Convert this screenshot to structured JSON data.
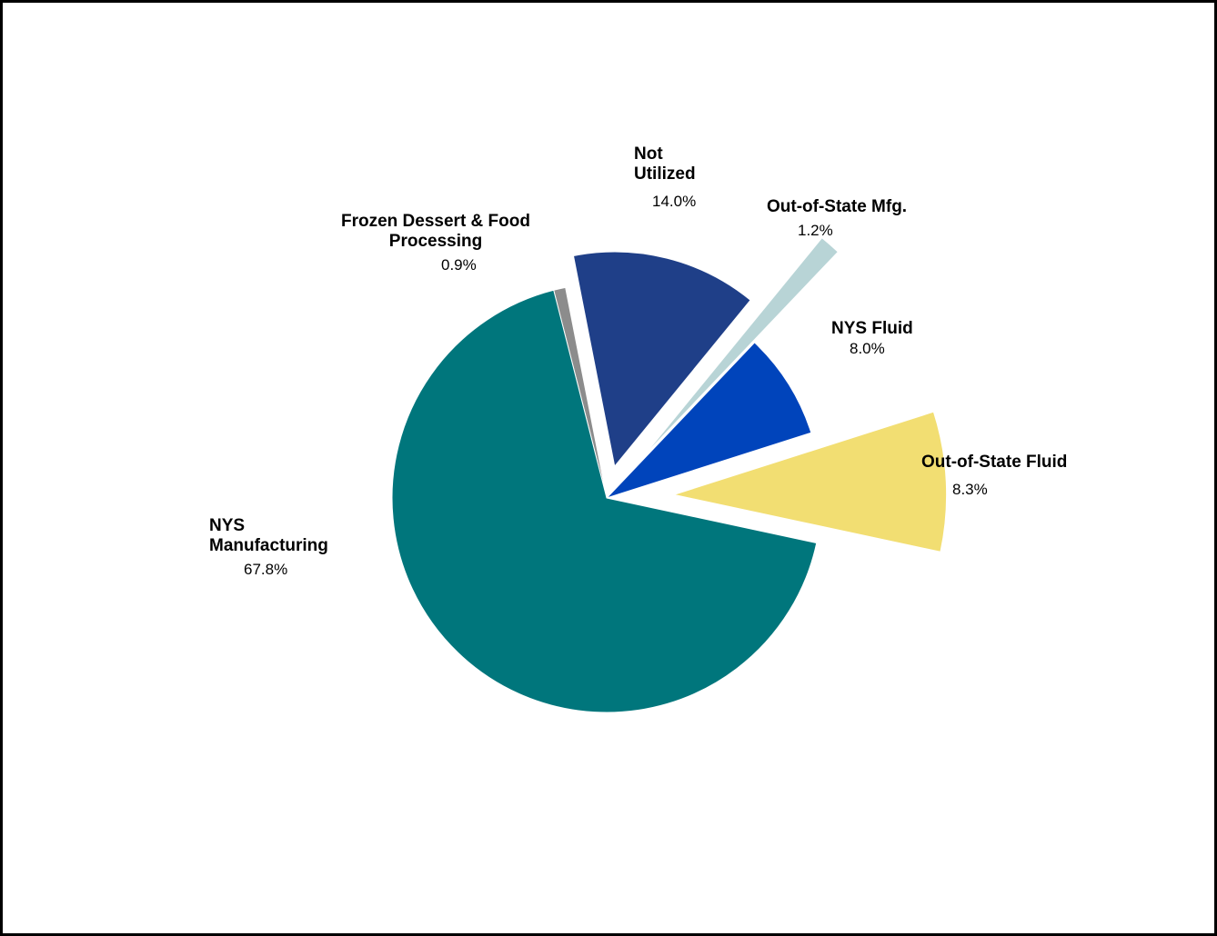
{
  "chart_data": {
    "type": "pie",
    "title": "",
    "slices": [
      {
        "label": "NYS Manufacturing",
        "value": 67.8,
        "value_label": "67.8%",
        "color": "#00767c",
        "exploded": false
      },
      {
        "label": "Frozen Dessert & Food Processing",
        "value": 0.9,
        "value_label": "0.9%",
        "color": "#8c8c8c",
        "exploded": false
      },
      {
        "label": "Not Utilized",
        "value": 14.0,
        "value_label": "14.0%",
        "color": "#1f3f88",
        "exploded": true
      },
      {
        "label": "Out-of-State Mfg.",
        "value": 1.2,
        "value_label": "1.2%",
        "color": "#b8d4d6",
        "exploded": true
      },
      {
        "label": "NYS Fluid",
        "value": 8.0,
        "value_label": "8.0%",
        "color": "#0044bb",
        "exploded": false
      },
      {
        "label": "Out-of-State Fluid",
        "value": 8.3,
        "value_label": "8.3%",
        "color": "#f2de72",
        "exploded": true
      }
    ],
    "legend": "none"
  },
  "labels": {
    "nys_manufacturing": {
      "line1": "NYS",
      "line2": "Manufacturing",
      "pct": "67.8%"
    },
    "frozen_dessert": {
      "line1": "Frozen Dessert & Food",
      "line2": "Processing",
      "pct": "0.9%"
    },
    "not_utilized": {
      "line1": "Not",
      "line2": "Utilized",
      "pct": "14.0%"
    },
    "out_of_state_mfg": {
      "line1": "Out-of-State Mfg.",
      "pct": "1.2%"
    },
    "nys_fluid": {
      "line1": "NYS Fluid",
      "pct": "8.0%"
    },
    "out_of_state_fluid": {
      "line1": "Out-of-State Fluid",
      "pct": "8.3%"
    }
  }
}
